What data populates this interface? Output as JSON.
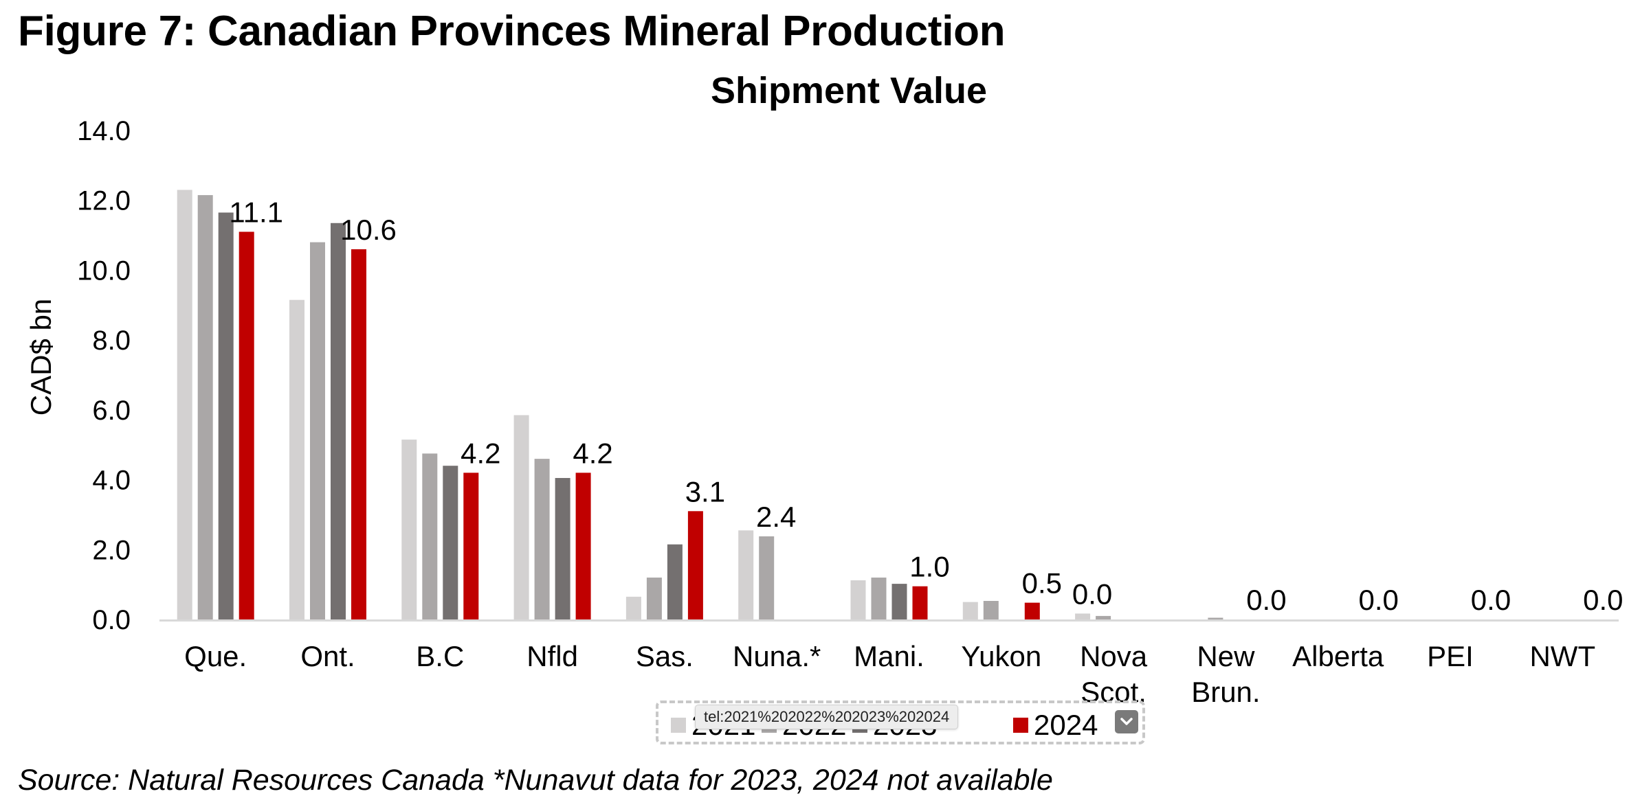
{
  "figure_title": "Figure 7: Canadian Provinces Mineral Production",
  "source_note": "Source: Natural Resources Canada *Nunavut data for 2023, 2024 not available",
  "legend": {
    "items": [
      {
        "label": "2021",
        "color": "#d3d1d1"
      },
      {
        "label": "2022",
        "color": "#aaa7a7"
      },
      {
        "label": "2023",
        "color": "#747070"
      },
      {
        "label": "2024",
        "color": "#c00000"
      }
    ],
    "tooltip": "tel:2021%202022%202023%202024",
    "dropdown_icon": "chevron-down-icon"
  },
  "chart_data": {
    "type": "bar",
    "title": "Shipment Value",
    "ylabel": "CAD$ bn",
    "xlabel": "",
    "ylim": [
      0,
      14
    ],
    "yticks": [
      "0.0",
      "2.0",
      "4.0",
      "6.0",
      "8.0",
      "10.0",
      "12.0",
      "14.0"
    ],
    "grid": false,
    "legend_position": "bottom",
    "categories": [
      [
        "Que."
      ],
      [
        "Ont."
      ],
      [
        "B.C"
      ],
      [
        "Nfld"
      ],
      [
        "Sas."
      ],
      [
        "Nuna.*"
      ],
      [
        "Mani."
      ],
      [
        "Yukon"
      ],
      [
        "Nova",
        "Scot."
      ],
      [
        "New",
        "Brun."
      ],
      [
        "Alberta"
      ],
      [
        "PEI"
      ],
      [
        "NWT"
      ]
    ],
    "series": [
      {
        "name": "2021",
        "color": "#d3d1d1",
        "values": [
          12.3,
          9.15,
          5.15,
          5.85,
          0.65,
          2.55,
          1.12,
          0.5,
          0.17,
          0.0,
          0.0,
          0.0,
          0.0
        ]
      },
      {
        "name": "2022",
        "color": "#aaa7a7",
        "values": [
          12.15,
          10.8,
          4.75,
          4.6,
          1.2,
          2.38,
          1.2,
          0.53,
          0.1,
          0.05,
          0.0,
          0.0,
          0.0
        ]
      },
      {
        "name": "2023",
        "color": "#747070",
        "values": [
          11.65,
          11.35,
          4.4,
          4.05,
          2.15,
          0.0,
          1.02,
          0.0,
          0.0,
          0.0,
          0.0,
          0.0,
          0.0
        ]
      },
      {
        "name": "2024",
        "color": "#c00000",
        "values": [
          11.1,
          10.6,
          4.2,
          4.2,
          3.1,
          0.0,
          0.95,
          0.48,
          0.0,
          0.0,
          0.0,
          0.0,
          0.0
        ]
      }
    ],
    "data_labels": [
      "11.1",
      "10.6",
      "4.2",
      "4.2",
      "3.1",
      "2.4",
      "1.0",
      "0.5",
      "0.0",
      "0.0",
      "0.0",
      "0.0",
      "0.0"
    ]
  }
}
